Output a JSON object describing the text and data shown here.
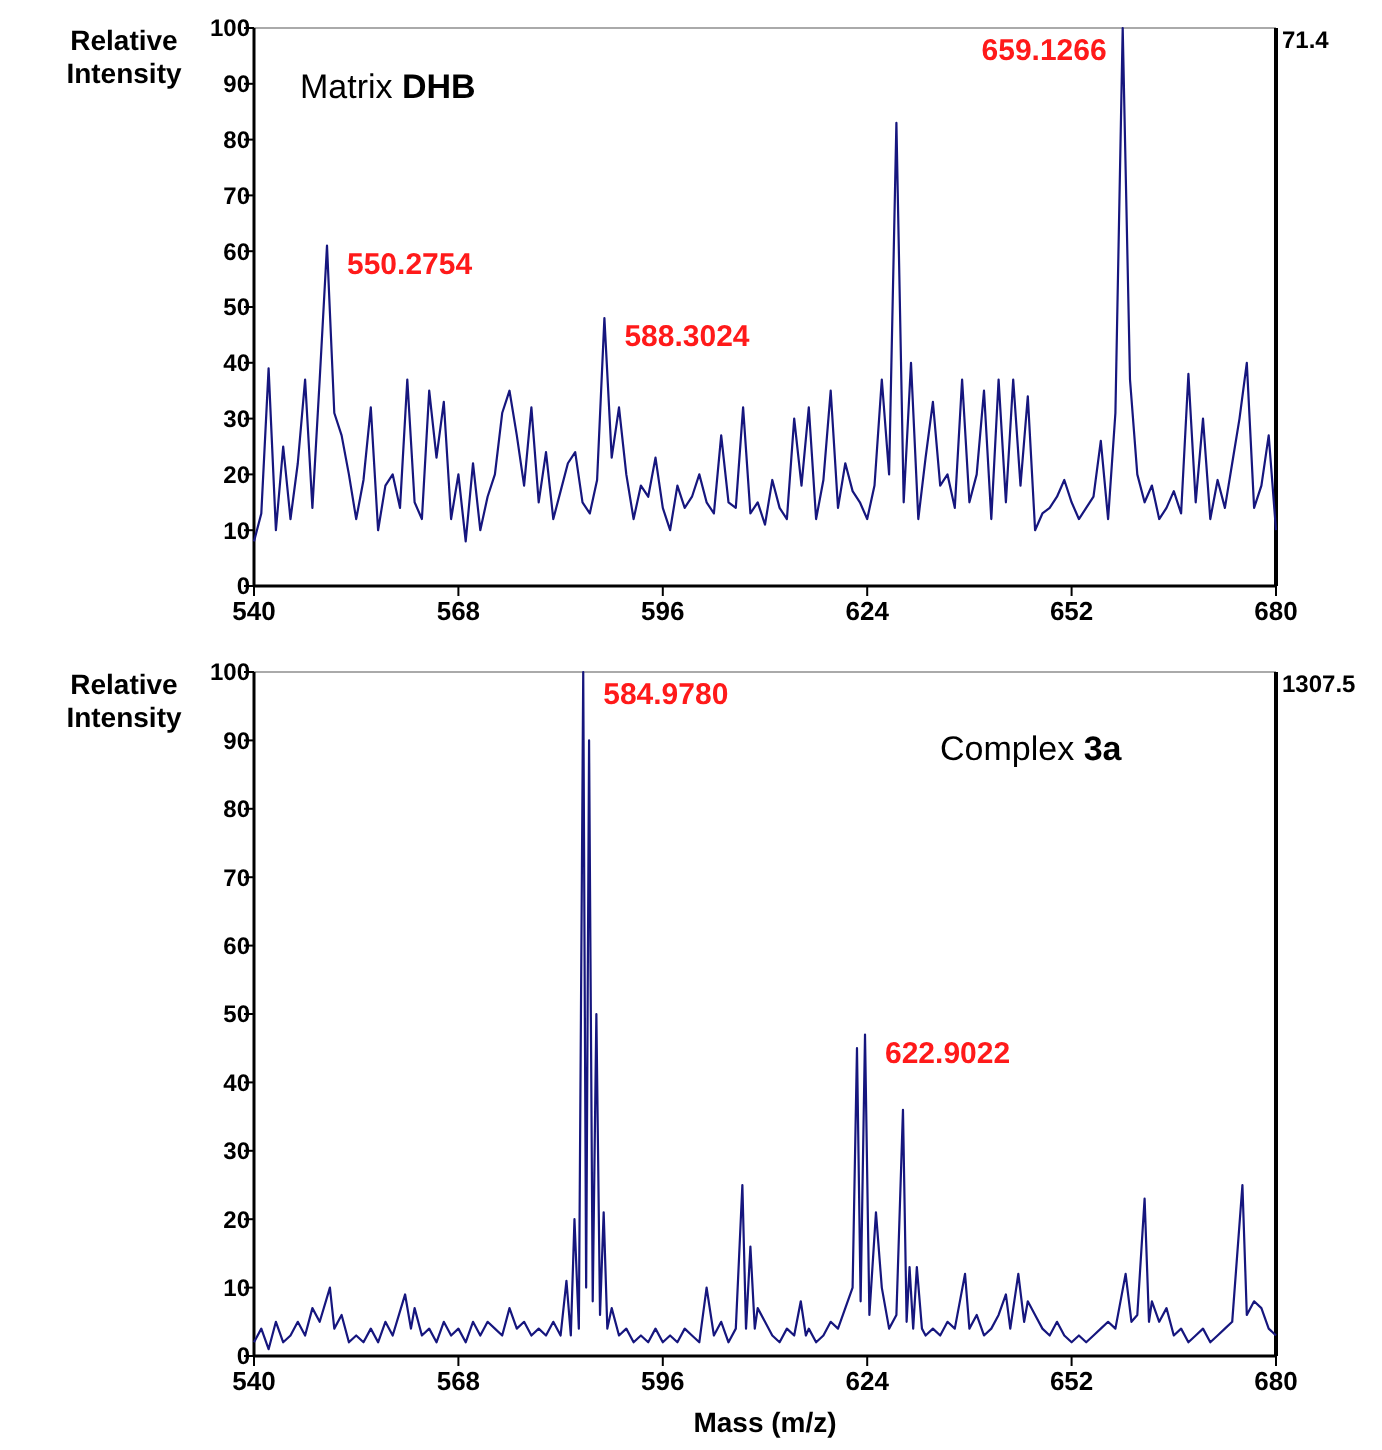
{
  "chart_data": [
    {
      "type": "line",
      "ylabel": "Relative Intensity",
      "annotations": [
        "Matrix DHB",
        "71.4",
        {
          "text": "550.2754",
          "x": 550,
          "y": 61
        },
        {
          "text": "588.3024",
          "x": 588,
          "y": 48
        },
        {
          "text": "659.1266",
          "x": 659,
          "y": 100
        }
      ],
      "series": [
        {
          "color": "#16167e",
          "x": [
            540,
            541,
            542,
            543,
            544,
            545,
            546,
            547,
            548,
            549,
            550,
            551,
            552,
            553,
            554,
            555,
            556,
            557,
            558,
            559,
            560,
            561,
            562,
            563,
            564,
            565,
            566,
            567,
            568,
            569,
            570,
            571,
            572,
            573,
            574,
            575,
            576,
            577,
            578,
            579,
            580,
            581,
            582,
            583,
            584,
            585,
            586,
            587,
            588,
            589,
            590,
            591,
            592,
            593,
            594,
            595,
            596,
            597,
            598,
            599,
            600,
            601,
            602,
            603,
            604,
            605,
            606,
            607,
            608,
            609,
            610,
            611,
            612,
            613,
            614,
            615,
            616,
            617,
            618,
            619,
            620,
            621,
            622,
            623,
            624,
            625,
            626,
            627,
            628,
            629,
            630,
            631,
            632,
            633,
            634,
            635,
            636,
            637,
            638,
            639,
            640,
            641,
            642,
            643,
            644,
            645,
            646,
            647,
            648,
            649,
            650,
            651,
            652,
            653,
            654,
            655,
            656,
            657,
            658,
            659,
            660,
            661,
            662,
            663,
            664,
            665,
            666,
            667,
            668,
            669,
            670,
            671,
            672,
            673,
            674,
            675,
            676,
            677,
            678,
            679,
            680
          ],
          "values": [
            8,
            13,
            39,
            10,
            25,
            12,
            22,
            37,
            14,
            37,
            61,
            31,
            27,
            20,
            12,
            19,
            32,
            10,
            18,
            20,
            14,
            37,
            15,
            12,
            35,
            23,
            33,
            12,
            20,
            8,
            22,
            10,
            16,
            20,
            31,
            35,
            27,
            18,
            32,
            15,
            24,
            12,
            17,
            22,
            24,
            15,
            13,
            19,
            48,
            23,
            32,
            20,
            12,
            18,
            16,
            23,
            14,
            10,
            18,
            14,
            16,
            20,
            15,
            13,
            27,
            15,
            14,
            32,
            13,
            15,
            11,
            19,
            14,
            12,
            30,
            18,
            32,
            12,
            19,
            35,
            14,
            22,
            17,
            15,
            12,
            18,
            37,
            20,
            83,
            15,
            40,
            12,
            23,
            33,
            18,
            20,
            14,
            37,
            15,
            20,
            35,
            12,
            37,
            15,
            37,
            18,
            34,
            10,
            13,
            14,
            16,
            19,
            15,
            12,
            14,
            16,
            26,
            12,
            31,
            100,
            37,
            20,
            15,
            18,
            12,
            14,
            17,
            13,
            38,
            15,
            30,
            12,
            19,
            14,
            22,
            30,
            40,
            14,
            18,
            27,
            10
          ]
        }
      ],
      "xlim": [
        540,
        680
      ],
      "xticks": [
        540,
        568,
        596,
        624,
        652,
        680
      ],
      "ylim": [
        0,
        100
      ],
      "yticks": [
        0,
        10,
        20,
        30,
        40,
        50,
        60,
        70,
        80,
        90,
        100
      ],
      "grid": false,
      "marker": "none",
      "line_style": "solid"
    },
    {
      "type": "line",
      "ylabel": "Relative Intensity",
      "xlabel": "Mass (m/z)",
      "annotations": [
        "Complex 3a",
        "1307.5",
        {
          "text": "584.9780",
          "x": 585.1,
          "y": 100
        },
        {
          "text": "622.9022",
          "x": 623.7,
          "y": 47
        }
      ],
      "series": [
        {
          "color": "#16167e",
          "x": [
            540,
            541,
            542,
            543,
            544,
            545,
            546,
            547,
            548,
            549,
            550.4,
            551,
            552,
            553,
            554,
            555,
            556,
            557,
            558,
            559,
            560.7,
            561.5,
            562,
            563,
            564,
            565,
            566,
            567,
            568,
            569,
            570,
            571,
            572,
            573,
            574,
            575,
            576,
            577,
            578,
            579,
            580,
            581,
            582,
            582.8,
            583.4,
            583.9,
            584.5,
            585.1,
            585.5,
            585.9,
            586.4,
            586.9,
            587.4,
            587.9,
            588.4,
            589,
            590,
            591,
            592,
            593,
            594,
            595,
            596,
            597,
            598,
            599,
            600,
            601,
            602,
            603,
            604,
            605,
            606,
            606.9,
            607.4,
            608,
            608.6,
            609,
            610,
            611,
            612,
            613,
            614,
            614.9,
            615.6,
            616,
            617,
            618,
            619,
            620,
            621,
            622,
            622.6,
            623.1,
            623.7,
            624.3,
            625.2,
            626,
            627,
            628,
            628.9,
            629.4,
            629.8,
            630.3,
            630.8,
            631.5,
            632,
            633,
            634,
            635,
            636,
            637.4,
            638,
            639,
            640,
            641,
            642,
            643,
            643.6,
            644.7,
            645.5,
            646,
            647,
            648,
            649,
            650,
            651,
            652,
            653,
            654,
            655,
            656,
            657,
            658,
            659.4,
            660.2,
            661,
            662,
            662.6,
            663,
            664,
            665,
            666,
            667,
            668,
            669,
            670,
            671,
            672,
            673,
            674,
            675.4,
            676,
            677,
            678,
            679,
            680
          ],
          "values": [
            2,
            4,
            1,
            5,
            2,
            3,
            5,
            3,
            7,
            5,
            10,
            4,
            6,
            2,
            3,
            2,
            4,
            2,
            5,
            3,
            9,
            4,
            7,
            3,
            4,
            2,
            5,
            3,
            4,
            2,
            5,
            3,
            5,
            4,
            3,
            7,
            4,
            5,
            3,
            4,
            3,
            5,
            3,
            11,
            3,
            20,
            4,
            100,
            10,
            90,
            8,
            50,
            6,
            21,
            4,
            7,
            3,
            4,
            2,
            3,
            2,
            4,
            2,
            3,
            2,
            4,
            3,
            2,
            10,
            3,
            5,
            2,
            4,
            25,
            4,
            16,
            4,
            7,
            5,
            3,
            2,
            4,
            3,
            8,
            3,
            4,
            2,
            3,
            5,
            4,
            7,
            10,
            45,
            8,
            47,
            6,
            21,
            10,
            4,
            6,
            36,
            5,
            13,
            4,
            13,
            4,
            3,
            4,
            3,
            5,
            4,
            12,
            4,
            6,
            3,
            4,
            6,
            9,
            4,
            12,
            5,
            8,
            6,
            4,
            3,
            5,
            3,
            2,
            3,
            2,
            3,
            4,
            5,
            4,
            12,
            5,
            6,
            23,
            5,
            8,
            5,
            7,
            3,
            4,
            2,
            3,
            4,
            2,
            3,
            4,
            5,
            25,
            6,
            8,
            7,
            4,
            3
          ]
        }
      ],
      "xlim": [
        540,
        680
      ],
      "xticks": [
        540,
        568,
        596,
        624,
        652,
        680
      ],
      "ylim": [
        0,
        100
      ],
      "yticks": [
        0,
        10,
        20,
        30,
        40,
        50,
        60,
        70,
        80,
        90,
        100
      ],
      "grid": false,
      "marker": "none",
      "line_style": "solid"
    }
  ]
}
